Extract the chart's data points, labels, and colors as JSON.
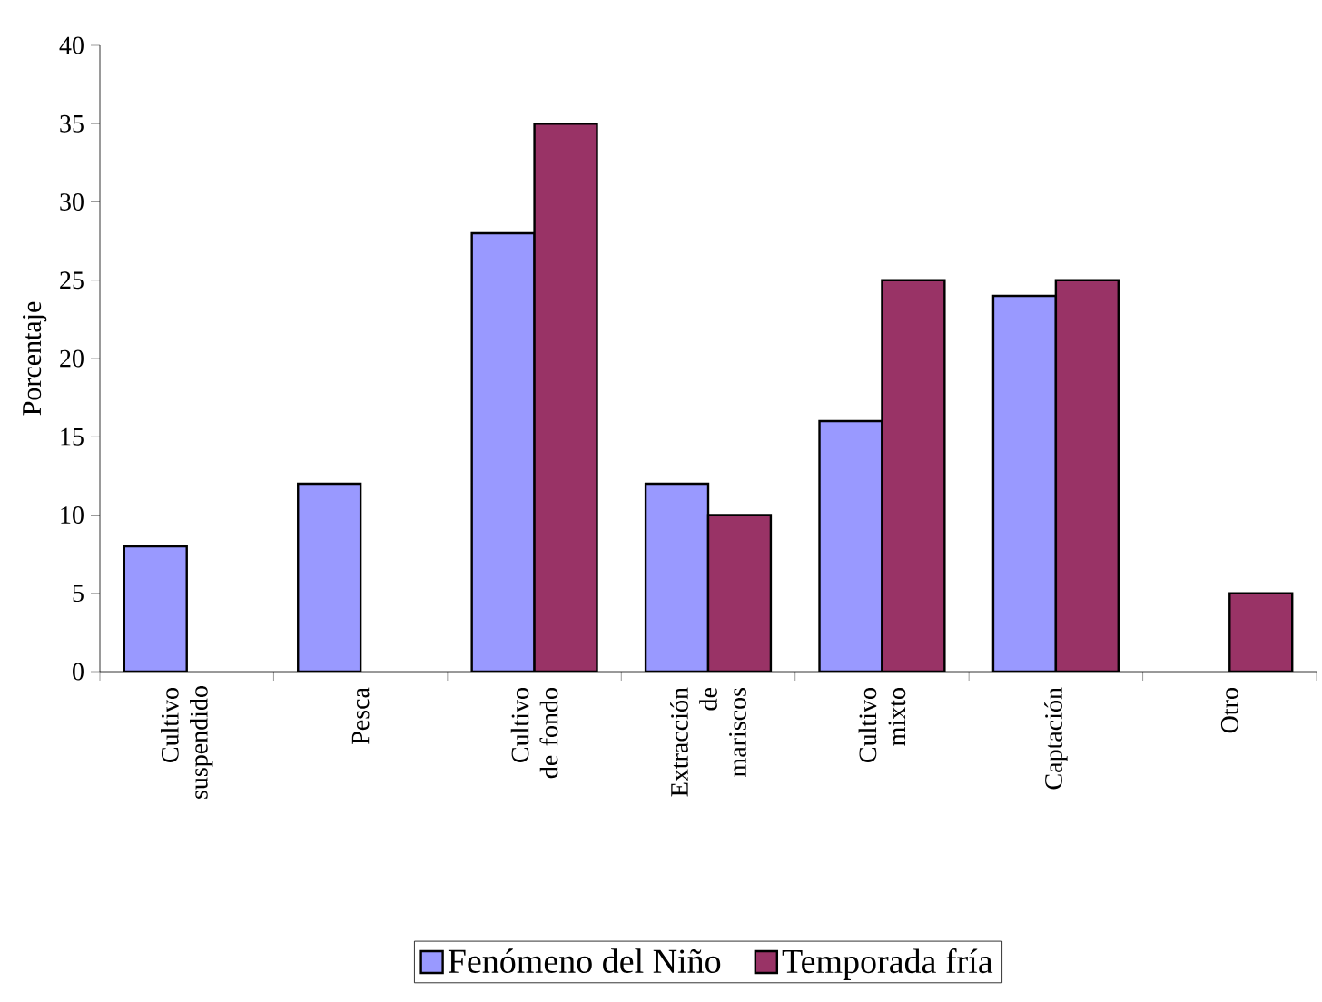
{
  "chart_data": {
    "type": "bar",
    "ylabel": "Porcentaje",
    "categories": [
      "Cultivo suspendido",
      "Pesca",
      "Cultivo de fondo",
      "Extracción de mariscos",
      "Cultivo mixto",
      "Captación",
      "Otro"
    ],
    "series": [
      {
        "name": "Fenómeno del Niño",
        "color": "#9999ff",
        "values": [
          8,
          12,
          28,
          12,
          16,
          24,
          null
        ]
      },
      {
        "name": "Temporada fría",
        "color": "#993366",
        "values": [
          null,
          null,
          35,
          10,
          25,
          25,
          5
        ]
      }
    ],
    "ylim": [
      0,
      40
    ],
    "yticks": [
      0,
      5,
      10,
      15,
      20,
      25,
      30,
      35,
      40
    ],
    "legend": "bottom"
  }
}
